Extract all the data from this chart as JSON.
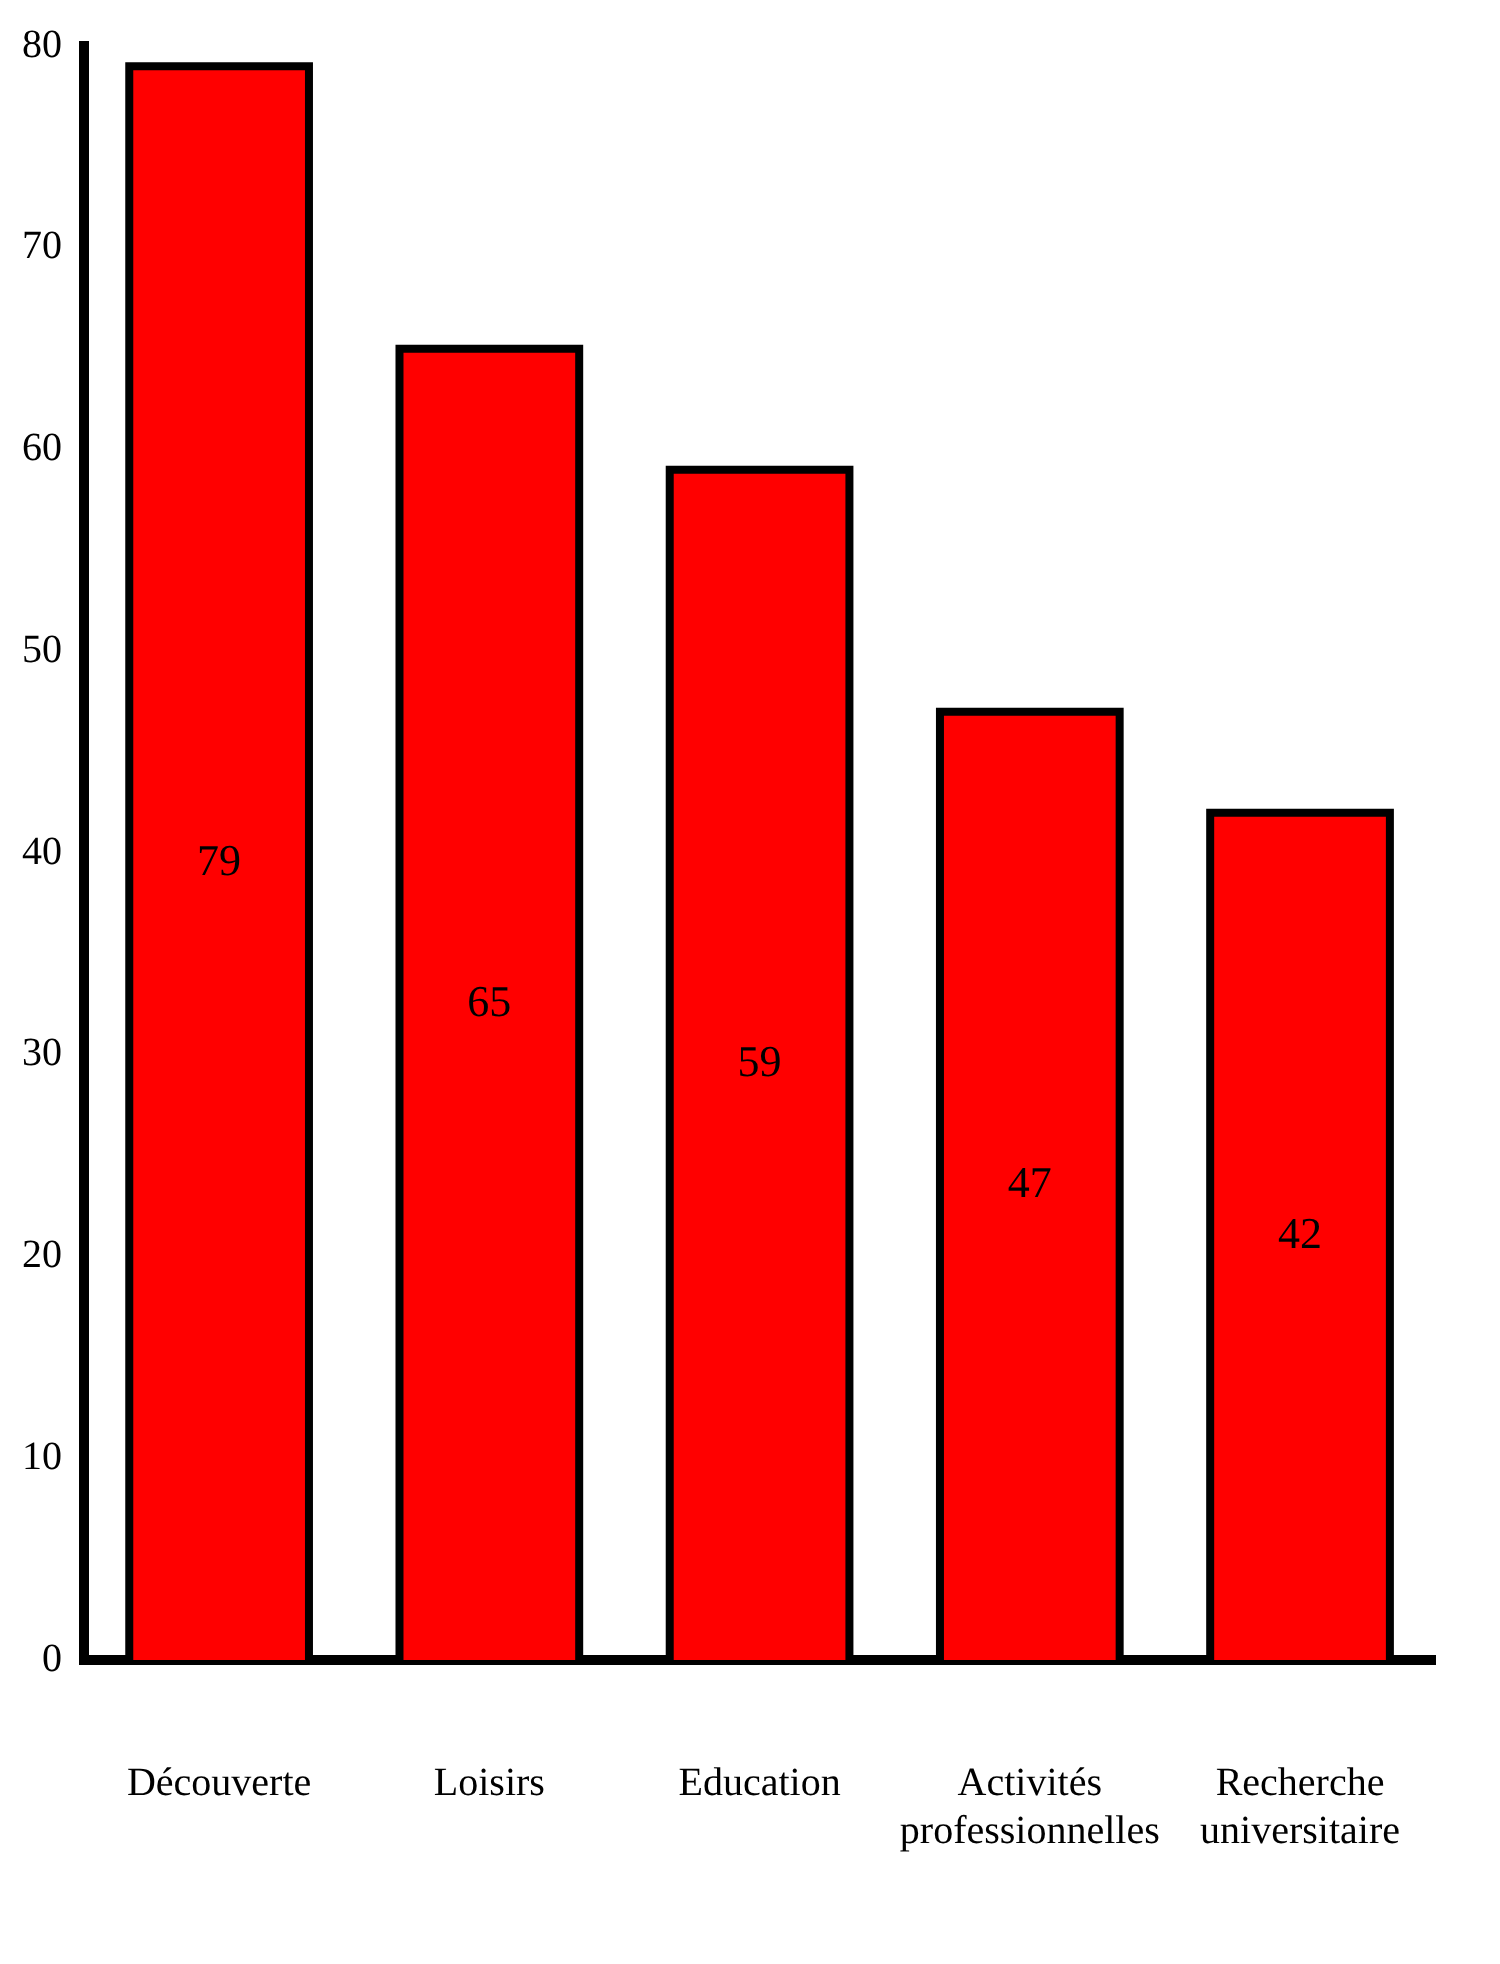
{
  "chart_data": {
    "type": "bar",
    "categories": [
      "Découverte",
      "Loisirs",
      "Education",
      "Activités professionnelles",
      "Recherche universitaire"
    ],
    "values": [
      79,
      65,
      59,
      47,
      42
    ],
    "color": "#ff0000",
    "ylim": [
      0,
      80
    ],
    "yticks": [
      0,
      10,
      20,
      30,
      40,
      50,
      60,
      70,
      80
    ],
    "grid": false,
    "data_labels": true,
    "legend": false
  }
}
